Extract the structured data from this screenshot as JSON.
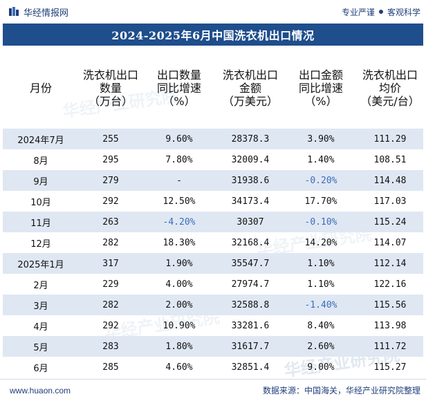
{
  "header": {
    "brand": "华经情报网",
    "slogan_left": "专业严谨",
    "slogan_right": "客观科学"
  },
  "title": "2024-2025年6月中国洗衣机出口情况",
  "columns": [
    "月份",
    "洗衣机出口\n数量\n（万台）",
    "出口数量\n同比增速\n（%）",
    "洗衣机出口\n金额\n（万美元）",
    "出口金额\n同比增速\n（%）",
    "洗衣机出口\n均价\n（美元/台）"
  ],
  "rows": [
    {
      "month": "2024年7月",
      "qty": "255",
      "qty_yoy": "9.60%",
      "amount": "28378.3",
      "amount_yoy": "3.90%",
      "price": "111.29"
    },
    {
      "month": "8月",
      "qty": "295",
      "qty_yoy": "7.80%",
      "amount": "32009.4",
      "amount_yoy": "1.40%",
      "price": "108.51"
    },
    {
      "month": "9月",
      "qty": "279",
      "qty_yoy": "-",
      "amount": "31938.6",
      "amount_yoy": "-0.20%",
      "price": "114.48"
    },
    {
      "month": "10月",
      "qty": "292",
      "qty_yoy": "12.50%",
      "amount": "34173.4",
      "amount_yoy": "17.70%",
      "price": "117.03"
    },
    {
      "month": "11月",
      "qty": "263",
      "qty_yoy": "-4.20%",
      "amount": "30307",
      "amount_yoy": "-0.10%",
      "price": "115.24"
    },
    {
      "month": "12月",
      "qty": "282",
      "qty_yoy": "18.30%",
      "amount": "32168.4",
      "amount_yoy": "14.20%",
      "price": "114.07"
    },
    {
      "month": "2025年1月",
      "qty": "317",
      "qty_yoy": "1.90%",
      "amount": "35547.7",
      "amount_yoy": "1.10%",
      "price": "112.14"
    },
    {
      "month": "2月",
      "qty": "229",
      "qty_yoy": "4.00%",
      "amount": "27974.7",
      "amount_yoy": "1.10%",
      "price": "122.16"
    },
    {
      "month": "3月",
      "qty": "282",
      "qty_yoy": "2.00%",
      "amount": "32588.8",
      "amount_yoy": "-1.40%",
      "price": "115.56"
    },
    {
      "month": "4月",
      "qty": "292",
      "qty_yoy": "10.90%",
      "amount": "33281.6",
      "amount_yoy": "8.40%",
      "price": "113.98"
    },
    {
      "month": "5月",
      "qty": "283",
      "qty_yoy": "1.80%",
      "amount": "31617.7",
      "amount_yoy": "2.60%",
      "price": "111.72"
    },
    {
      "month": "6月",
      "qty": "285",
      "qty_yoy": "4.60%",
      "amount": "32851.4",
      "amount_yoy": "9.00%",
      "price": "115.27"
    }
  ],
  "watermark": "华经产业研究院",
  "footer": {
    "url": "www.huaon.com",
    "source": "数据来源：中国海关，华经产业研究院整理"
  },
  "colors": {
    "title_bg": "#1f4e8c",
    "stripe": "#dfe7f3",
    "negative": "#3b6db8",
    "brand": "#1f3d7a"
  }
}
